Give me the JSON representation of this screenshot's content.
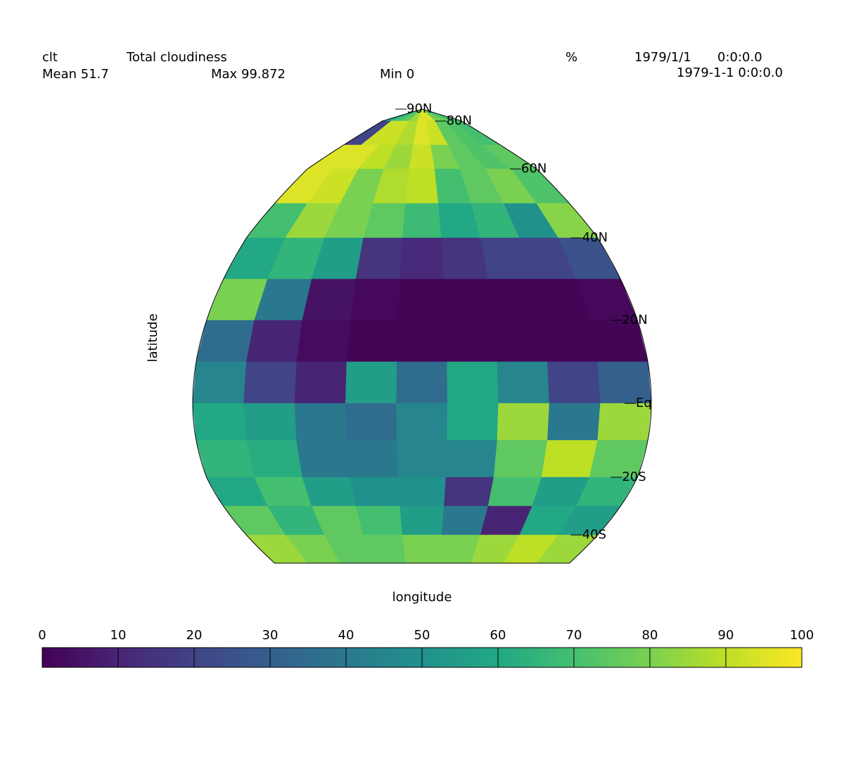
{
  "chart_data": {
    "type": "map",
    "variable": "clt",
    "long_name": "Total cloudiness",
    "units": "%",
    "date": "1979/1/1",
    "time": "0:0:0.0",
    "datetime": "1979-1-1 0:0:0.0",
    "stats": [
      {
        "label": "Mean",
        "value": 51.7
      },
      {
        "label": "Max",
        "value": 99.872
      },
      {
        "label": "Min",
        "value": 0
      }
    ],
    "xlabel": "longitude",
    "ylabel": "latitude",
    "lat_labels": [
      {
        "value": 90,
        "label": "90N"
      },
      {
        "value": 80,
        "label": "80N"
      },
      {
        "value": 60,
        "label": "60N"
      },
      {
        "value": 40,
        "label": "40N"
      },
      {
        "value": 20,
        "label": "20N"
      },
      {
        "value": 0,
        "label": "Eq"
      },
      {
        "value": -20,
        "label": "20S"
      },
      {
        "value": -40,
        "label": "40S"
      }
    ],
    "lat_bins": [
      90,
      80,
      70,
      60,
      50,
      40,
      30,
      20,
      10,
      0,
      -10,
      -20,
      -30,
      -40,
      -50
    ],
    "lon_bins": [
      -45,
      -35,
      -25,
      -15,
      -5,
      5,
      15,
      25,
      35,
      45
    ],
    "values": [
      [
        60,
        70,
        75,
        85,
        95,
        95,
        80,
        75,
        70
      ],
      [
        20,
        92,
        92,
        88,
        95,
        92,
        75,
        72,
        70
      ],
      [
        95,
        95,
        90,
        85,
        92,
        80,
        75,
        72,
        75
      ],
      [
        95,
        92,
        80,
        88,
        90,
        70,
        75,
        80,
        72
      ],
      [
        70,
        85,
        80,
        75,
        68,
        60,
        65,
        50,
        82
      ],
      [
        60,
        65,
        55,
        15,
        12,
        15,
        20,
        20,
        25
      ],
      [
        80,
        40,
        5,
        2,
        1,
        1,
        1,
        1,
        2
      ],
      [
        35,
        10,
        3,
        1,
        1,
        1,
        1,
        1,
        1
      ],
      [
        45,
        20,
        10,
        55,
        35,
        60,
        45,
        20,
        30
      ],
      [
        60,
        55,
        40,
        35,
        45,
        60,
        85,
        40,
        85
      ],
      [
        65,
        62,
        40,
        40,
        45,
        45,
        75,
        90,
        75
      ],
      [
        60,
        70,
        55,
        50,
        50,
        15,
        70,
        55,
        65
      ],
      [
        75,
        65,
        75,
        70,
        55,
        40,
        10,
        60,
        55
      ],
      [
        85,
        80,
        75,
        75,
        80,
        80,
        85,
        90,
        85
      ]
    ],
    "colorbar": {
      "ticks": [
        0,
        10,
        20,
        30,
        40,
        50,
        60,
        70,
        80,
        90,
        100
      ],
      "colors": [
        "#440154",
        "#482475",
        "#414487",
        "#355f8d",
        "#2a788e",
        "#21918c",
        "#22a884",
        "#44bf70",
        "#7ad151",
        "#bddf26",
        "#fde725"
      ]
    }
  }
}
